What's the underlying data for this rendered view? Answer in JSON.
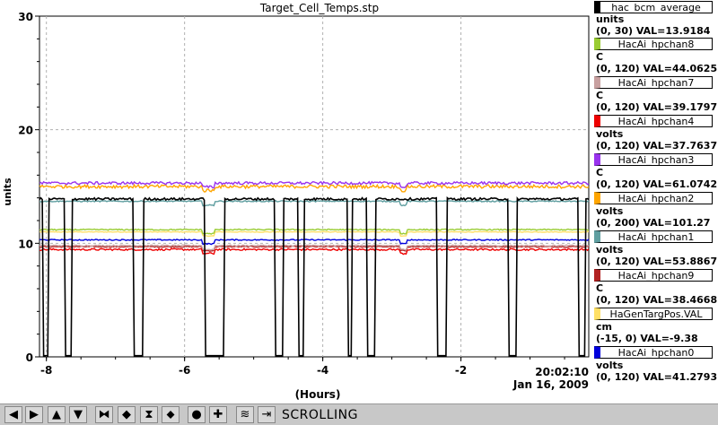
{
  "chart_data": {
    "type": "line",
    "title": "Target_Cell_Temps.stp",
    "xlabel": "(Hours)",
    "ylabel": "units",
    "xlim": [
      -8.1,
      -0.15
    ],
    "ylim": [
      0,
      30
    ],
    "x_ticks": [
      -8,
      -6,
      -4,
      -2
    ],
    "x_tick_labels": [
      "-8",
      "-6",
      "-4",
      "-2"
    ],
    "y_ticks": [
      0,
      10,
      20,
      30
    ],
    "y_tick_labels": [
      "0",
      "10",
      "20",
      "30"
    ],
    "end_time_label": "20:02:10",
    "end_date_label": "Jan 16, 2009",
    "grid": true,
    "series": [
      {
        "name": "hac_bcm_average",
        "color": "#000000",
        "baseline": 13.9,
        "noise": 0.1,
        "style": "bcm"
      },
      {
        "name": "HacAi_hpchan8",
        "color": "#99cc33",
        "baseline": 11.2,
        "noise": 0.05
      },
      {
        "name": "HacAi_hpchan7",
        "color": "#c8a0a0",
        "baseline": 9.8,
        "noise": 0.05
      },
      {
        "name": "HacAi_hpchan4",
        "color": "#ee0000",
        "baseline": 9.45,
        "noise": 0.08
      },
      {
        "name": "HacAi_hpchan3",
        "color": "#9933ee",
        "baseline": 15.3,
        "noise": 0.12
      },
      {
        "name": "HacAi_hpchan2",
        "color": "#ffa500",
        "baseline": 15.0,
        "noise": 0.15
      },
      {
        "name": "HacAi_hpchan1",
        "color": "#5f9ea0",
        "baseline": 13.7,
        "noise": 0.05
      },
      {
        "name": "HacAi_hpchan9",
        "color": "#b22222",
        "baseline": 9.7,
        "noise": 0.05
      },
      {
        "name": "HaGenTargPos.VAL",
        "color": "#ffe066",
        "baseline": 11.0,
        "noise": 0.03
      },
      {
        "name": "HacAi_hpchan0",
        "color": "#0000dd",
        "baseline": 10.3,
        "noise": 0.05
      }
    ]
  },
  "legend": [
    {
      "name": "hac_bcm_average",
      "unit": "units",
      "range": "(0, 30) VAL=13.9184",
      "color": "#000000"
    },
    {
      "name": "HacAi_hpchan8",
      "unit": "C",
      "range": "(0, 120) VAL=44.0625",
      "color": "#99cc33"
    },
    {
      "name": "HacAi_hpchan7",
      "unit": "C",
      "range": "(0, 120) VAL=39.1797",
      "color": "#c8a0a0"
    },
    {
      "name": "HacAi_hpchan4",
      "unit": "volts",
      "range": "(0, 120) VAL=37.7637",
      "color": "#ee0000"
    },
    {
      "name": "HacAi_hpchan3",
      "unit": "C",
      "range": "(0, 120) VAL=61.0742",
      "color": "#9933ee"
    },
    {
      "name": "HacAi_hpchan2",
      "unit": "volts",
      "range": "(0, 200) VAL=101.27",
      "color": "#ffa500"
    },
    {
      "name": "HacAi_hpchan1",
      "unit": "volts",
      "range": "(0, 120) VAL=53.8867",
      "color": "#5f9ea0"
    },
    {
      "name": "HacAi_hpchan9",
      "unit": "C",
      "range": "(0, 120) VAL=38.4668",
      "color": "#b22222"
    },
    {
      "name": "HaGenTargPos.VAL",
      "unit": "cm",
      "range": "(-15, 0) VAL=-9.38",
      "color": "#ffe066"
    },
    {
      "name": "HacAi_hpchan0",
      "unit": "volts",
      "range": "(0, 120) VAL=41.2793",
      "color": "#0000dd"
    }
  ],
  "toolbar": {
    "mode_label": "SCROLLING",
    "buttons": [
      {
        "icon": "arrow-left-icon",
        "glyph": "◀"
      },
      {
        "icon": "arrow-right-icon",
        "glyph": "▶"
      },
      {
        "icon": "arrow-up-icon",
        "glyph": "▲"
      },
      {
        "icon": "arrow-down-icon",
        "glyph": "▼"
      },
      {
        "icon": "shrink-horizontal-icon",
        "glyph": "⧓"
      },
      {
        "icon": "expand-horizontal-icon",
        "glyph": "◆"
      },
      {
        "icon": "shrink-vertical-icon",
        "glyph": "⧗"
      },
      {
        "icon": "expand-vertical-icon",
        "glyph": "⬥"
      },
      {
        "icon": "zoom-out-icon",
        "glyph": "●"
      },
      {
        "icon": "zoom-in-icon",
        "glyph": "✚"
      },
      {
        "icon": "autoscale-icon",
        "glyph": "≋"
      },
      {
        "icon": "go-to-end-icon",
        "glyph": "⇥"
      }
    ]
  }
}
